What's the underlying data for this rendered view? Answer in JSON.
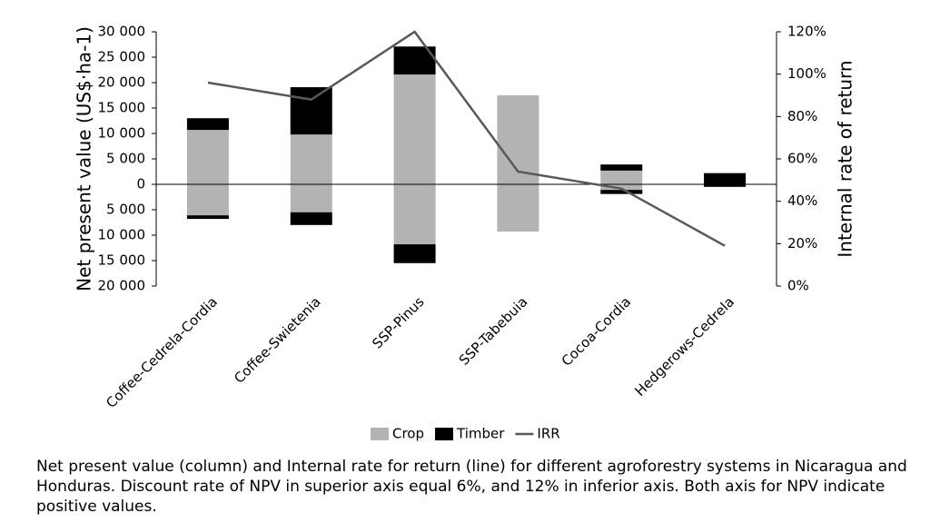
{
  "chart_data": {
    "type": "bar",
    "categories": [
      "Coffee-Cedrela-Cordia",
      "Coffee-Swietenia",
      "SSP-Pinus",
      "SSP-Tabebuia",
      "Cocoa-Cordia",
      "Hedgerows-Cedrela"
    ],
    "series": [
      {
        "name": "Crop",
        "color": "#b3b3b3",
        "values": [
          10700,
          9800,
          21600,
          17500,
          2700,
          0
        ],
        "lower_values": [
          -6100,
          -5500,
          -11800,
          -9300,
          -1100,
          0
        ]
      },
      {
        "name": "Timber",
        "color": "#000000",
        "values": [
          2300,
          9300,
          5500,
          0,
          1200,
          2200
        ],
        "lower_values": [
          -700,
          -2500,
          -3700,
          0,
          -800,
          -500
        ]
      },
      {
        "name": "IRR",
        "type": "line",
        "axis": "y2",
        "color": "#595959",
        "values": [
          96,
          88,
          120,
          54,
          46,
          19
        ]
      }
    ],
    "ylabel": "Net present value (US$·ha-1)",
    "y2label": "Internal rate of return",
    "ylim": [
      -20000,
      30000
    ],
    "yticks": [
      {
        "value": -20000,
        "label": "20 000"
      },
      {
        "value": -15000,
        "label": "15 000"
      },
      {
        "value": -10000,
        "label": "10 000"
      },
      {
        "value": -5000,
        "label": "5 000"
      },
      0,
      {
        "value": 5000,
        "label": "5 000"
      },
      {
        "value": 10000,
        "label": "10 000"
      },
      {
        "value": 15000,
        "label": "15 000"
      },
      {
        "value": 20000,
        "label": "20 000"
      },
      {
        "value": 25000,
        "label": "25 000"
      },
      {
        "value": 30000,
        "label": "30 000"
      }
    ],
    "y2lim": [
      0,
      120
    ],
    "y2ticks": [
      {
        "value": 0,
        "label": "0%"
      },
      {
        "value": 20,
        "label": "20%"
      },
      {
        "value": 40,
        "label": "40%"
      },
      {
        "value": 60,
        "label": "60%"
      },
      {
        "value": 80,
        "label": "80%"
      },
      {
        "value": 100,
        "label": "100%"
      },
      {
        "value": 120,
        "label": "120%"
      }
    ],
    "legend": "bottom",
    "caption": "Net present value (column) and Internal rate for return (line) for different agroforestry systems in Nicaragua and Honduras. Discount rate of NPV in superior axis equal 6%, and 12% in inferior axis. Both axis for NPV indicate positive values."
  }
}
